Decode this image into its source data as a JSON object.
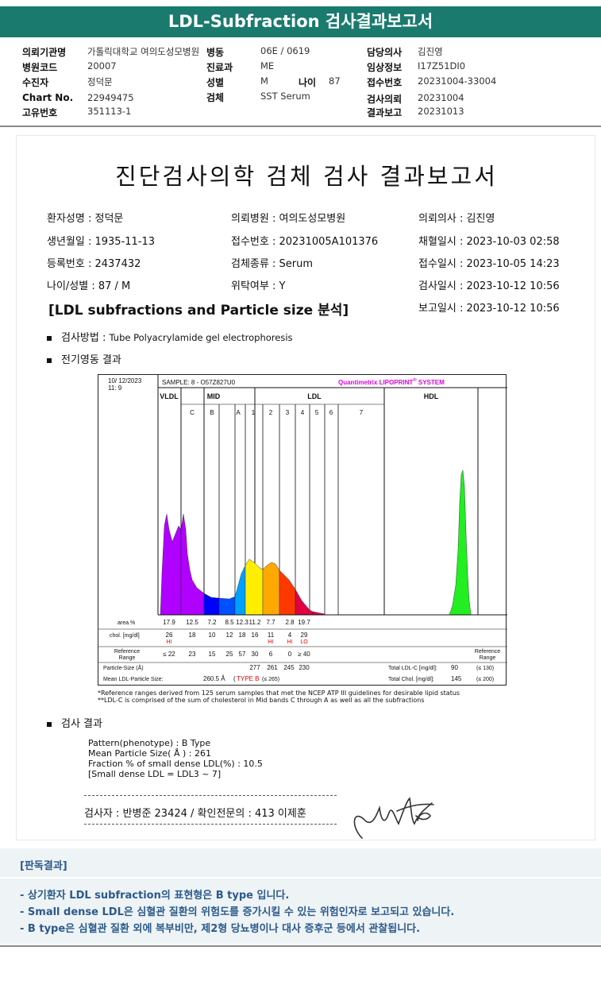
{
  "header": {
    "title": "LDL-Subfraction 검사결과보고서"
  },
  "info": {
    "rows": [
      [
        {
          "label": "의뢰기관명",
          "value": "가톨릭대학교 여의도성모병원"
        },
        {
          "label": "병동",
          "value": "06E / 0619"
        },
        {
          "label": "담당의사",
          "value": "김진영"
        }
      ],
      [
        {
          "label": "병원코드",
          "value": "20007"
        },
        {
          "label": "진료과",
          "value": "ME"
        },
        {
          "label": "임상정보",
          "value": "I17Z51DI0"
        }
      ],
      [
        {
          "label": "수진자",
          "value": "정덕문"
        },
        {
          "label": "성별",
          "value": "M"
        },
        {
          "label": "접수번호",
          "value": "20231004-33004"
        }
      ],
      [
        {
          "label": "Chart No.",
          "value": "22949475"
        },
        {
          "label": "검체",
          "value": "SST Serum"
        },
        {
          "label": "검사의뢰",
          "value": "20231004"
        }
      ],
      [
        {
          "label": "고유번호",
          "value": "351113-1"
        },
        {
          "label": "",
          "value": ""
        },
        {
          "label": "결과보고",
          "value": "20231013"
        }
      ]
    ],
    "age_label": "나이",
    "age_value": "87"
  },
  "report": {
    "title": "진단검사의학 검체 검사 결과보고서",
    "fields": {
      "patient_name": "환자성명 : 정덕문",
      "hospital": "의뢰병원 : 여의도성모병원",
      "doctor": "의뢰의사 : 김진영",
      "birth": "생년월일 : 1935-11-13",
      "receipt_no": "접수번호 : 20231005A101376",
      "draw_time": "채혈일시 : 2023-10-03 02:58",
      "reg_no": "등록번호 : 2437432",
      "specimen": "검체종류 : Serum",
      "receipt_time": "접수일시 : 2023-10-05 14:23",
      "age_sex": "나이/성별 : 87 / M",
      "outsourced": "위탁여부 : Y",
      "test_time": "검사일시 : 2023-10-12 10:56",
      "report_time": "보고일시 : 2023-10-12 10:56"
    },
    "section_title": "[LDL subfractions and Particle size 분석]",
    "method_label": "검사방법",
    "method_value": "Tube Polyacrylamide gel electrophoresis",
    "electro_label": "전기영동 결과",
    "result_label": "검사 결과",
    "results": [
      "Pattern(phenotype) : B Type",
      "Mean Particle Size( Å ) : 261",
      "Fraction % of small dense LDL(%) : 10.5",
      "[Small dense LDL = LDL3 ~ 7]"
    ],
    "examiner": "검사자 : 반병준 23424 / 확인전문의 : 413 이제훈",
    "footnotes": [
      "*Reference ranges derived from 125 serum samples that met the NCEP ATP III guidelines for desirable lipid status",
      "**LDL-C is comprised of the sum of cholesterol in Mid bands C through A as well as all the subfractions"
    ]
  },
  "chart_data": {
    "type": "area",
    "date": "10/ 12/2023",
    "time": "11: 9",
    "sample": "SAMPLE:   8 - O57Z827U0",
    "brand": "Quantimetrix LIPOPRINT",
    "brand_reg": "®",
    "brand_suffix": " SYSTEM",
    "groups": [
      "VLDL",
      "MID",
      "LDL",
      "HDL"
    ],
    "bands": [
      "C",
      "B",
      "A",
      "1",
      "2",
      "3",
      "4",
      "5",
      "6",
      "7"
    ],
    "row_labels": {
      "area": "area.%",
      "chol": "chol. [mg/dl]",
      "ref": "Reference Range",
      "particle": "Particle-Size (Å)",
      "mean": "Mean LDL-Particle Size:"
    },
    "fractions": [
      "VLDL",
      "C",
      "B",
      "A",
      "1",
      "2",
      "3",
      "4",
      "HDL"
    ],
    "area_pct": [
      "17.9",
      "12.5",
      "7.2",
      "8.5",
      "12.3",
      "11.2",
      "7.7",
      "2.8",
      "19.7"
    ],
    "chol_mgdl": [
      "26",
      "18",
      "10",
      "12",
      "18",
      "16",
      "11",
      "4",
      "29"
    ],
    "flags": [
      "HI",
      "",
      "",
      "",
      "",
      "",
      "HI",
      "HI",
      "LO"
    ],
    "ref_ranges": [
      "≤ 22",
      "23",
      "15",
      "25",
      "57",
      "30",
      "6",
      "0",
      "≥ 40"
    ],
    "particle_sizes": [
      "277",
      "261",
      "245",
      "230"
    ],
    "mean_size_value": "260.5 Å",
    "mean_size_type": "TYPE B",
    "mean_size_ref": "(≤ 265)",
    "total_ldl_label": "Total LDL-C [mg/dl]:",
    "total_ldl": "90",
    "total_ldl_ref": "(≤ 130)",
    "total_chol_label": "Total Chol. [mg/dl]:",
    "total_chol": "145",
    "total_chol_ref": "(≤ 200)",
    "ref_side_label": "Reference Range",
    "colors": {
      "vldl": "#b000ff",
      "midC": "#0000ff",
      "midB": "#0050ff",
      "midA": "#00a0ff",
      "ldl1": "#ffee00",
      "ldl2": "#ffa800",
      "ldl3": "#ff3800",
      "ldl4": "#e00040",
      "hdl": "#22ee22",
      "flag": "#ee0000",
      "brand": "#e000e0"
    }
  },
  "interpretation": {
    "title": "[판독결과]",
    "lines": [
      "- 상기환자 LDL subfraction의 표현형은 B type 입니다.",
      "-   Small dense LDL은 심혈관 질환의 위험도를 증가시킬 수 있는 위험인자로 보고되고 있습니다.",
      "-   B type은 심혈관 질환 외에 복부비만, 제2형 당뇨병이나 대사 증후군 등에서 관찰됩니다."
    ]
  }
}
